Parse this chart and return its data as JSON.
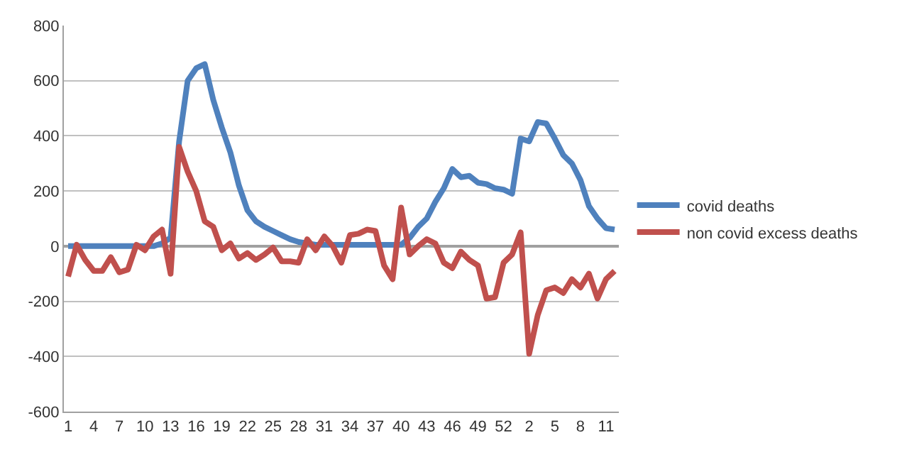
{
  "chart_data": {
    "type": "line",
    "categories": [
      "1",
      null,
      null,
      "4",
      null,
      null,
      "7",
      null,
      null,
      "10",
      null,
      null,
      "13",
      null,
      null,
      "16",
      null,
      null,
      "19",
      null,
      null,
      "22",
      null,
      null,
      "25",
      null,
      null,
      "28",
      null,
      null,
      "31",
      null,
      null,
      "34",
      null,
      null,
      "37",
      null,
      null,
      "40",
      null,
      null,
      "43",
      null,
      null,
      "46",
      null,
      null,
      "49",
      null,
      null,
      "52",
      null,
      null,
      "2",
      null,
      null,
      "5",
      null,
      null,
      "8",
      null,
      null,
      "11",
      null
    ],
    "series": [
      {
        "name": "covid deaths",
        "color": "#4f81bd",
        "values": [
          0,
          0,
          0,
          0,
          0,
          0,
          0,
          0,
          0,
          0,
          0,
          10,
          30,
          380,
          600,
          645,
          660,
          530,
          430,
          340,
          220,
          130,
          90,
          70,
          55,
          40,
          25,
          15,
          10,
          5,
          5,
          5,
          5,
          5,
          5,
          5,
          5,
          5,
          5,
          5,
          30,
          70,
          100,
          160,
          210,
          280,
          250,
          255,
          230,
          225,
          210,
          205,
          190,
          390,
          380,
          450,
          445,
          390,
          330,
          300,
          240,
          145,
          100,
          65,
          60
        ]
      },
      {
        "name": "non covid excess deaths",
        "color": "#c0504d",
        "values": [
          -110,
          5,
          -50,
          -90,
          -90,
          -40,
          -95,
          -85,
          5,
          -15,
          35,
          60,
          -100,
          360,
          270,
          200,
          90,
          70,
          -15,
          10,
          -45,
          -25,
          -50,
          -30,
          -5,
          -55,
          -55,
          -60,
          25,
          -15,
          35,
          0,
          -60,
          40,
          45,
          60,
          55,
          -70,
          -120,
          140,
          -30,
          0,
          25,
          10,
          -60,
          -80,
          -20,
          -50,
          -70,
          -190,
          -185,
          -60,
          -30,
          50,
          -390,
          -250,
          -160,
          -150,
          -170,
          -120,
          -150,
          -100,
          -190,
          -120,
          -90
        ]
      }
    ],
    "ylim": [
      -600,
      800
    ],
    "yticks": [
      -600,
      -400,
      -200,
      0,
      200,
      400,
      600,
      800
    ],
    "grid": "y",
    "legend": "right",
    "marker": "none",
    "line_style": "solid"
  }
}
